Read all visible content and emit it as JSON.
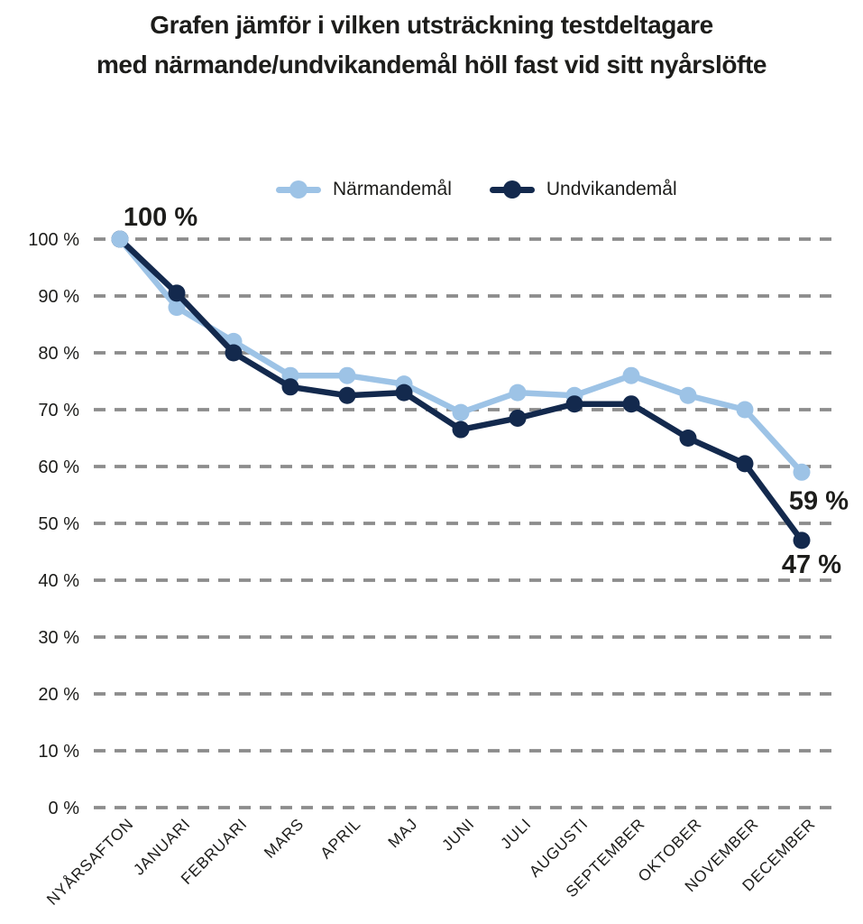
{
  "title": {
    "line1": "Grafen jämför i vilken utsträckning testdeltagare",
    "line2": "med närmande/undvikandemål höll fast vid sitt nyårslöfte"
  },
  "legend": [
    {
      "label": "Närmandemål",
      "color": "#9DC3E6"
    },
    {
      "label": "Undvikandemål",
      "color": "#13294D"
    }
  ],
  "chart_data": {
    "type": "line",
    "categories": [
      "NYÅRSAFTON",
      "JANUARI",
      "FEBRUARI",
      "MARS",
      "APRIL",
      "MAJ",
      "JUNI",
      "JULI",
      "AUGUSTI",
      "SEPTEMBER",
      "OKTOBER",
      "NOVEMBER",
      "DECEMBER"
    ],
    "series": [
      {
        "name": "Närmandemål",
        "color": "#9DC3E6",
        "values": [
          100,
          88,
          82,
          76,
          76,
          74.5,
          69.5,
          73,
          72.5,
          76,
          72.5,
          70,
          59
        ]
      },
      {
        "name": "Undvikandemål",
        "color": "#13294D",
        "values": [
          100,
          90.5,
          80,
          74,
          72.5,
          73,
          66.5,
          68.5,
          71,
          71,
          65,
          60.5,
          47
        ]
      }
    ],
    "ylim": [
      0,
      100
    ],
    "ytick_step": 10,
    "ytick_labels": [
      "0 %",
      "10 %",
      "20 %",
      "30 %",
      "40 %",
      "50 %",
      "60 %",
      "70 %",
      "80 %",
      "90 %",
      "100 %"
    ],
    "grid": "horizontal-dashed",
    "legend_position": "top-center",
    "annotations": [
      {
        "id": "start",
        "text": "100 %",
        "series": 0,
        "point": 0
      },
      {
        "id": "end-narmandemal",
        "text": "59 %",
        "series": 0,
        "point": 12
      },
      {
        "id": "end-undvikandemal",
        "text": "47 %",
        "series": 1,
        "point": 12
      }
    ],
    "colors": {
      "grid": "#8C8C8C",
      "text": "#1D1D1B",
      "background": "#FFFFFF"
    }
  }
}
